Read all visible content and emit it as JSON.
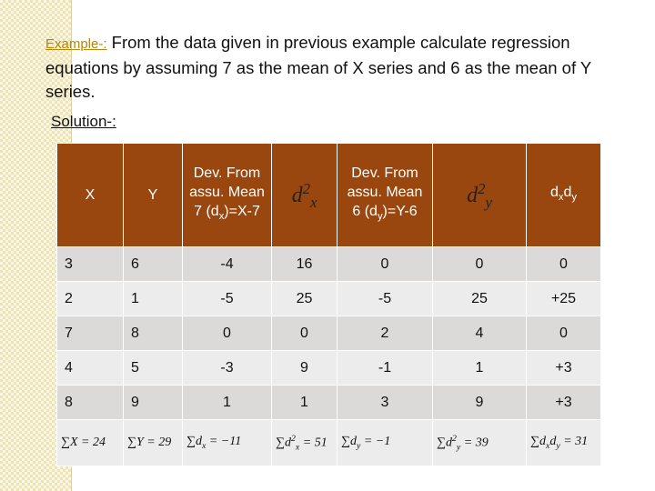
{
  "header": {
    "example_label": "Example-:",
    "text": "From the data given in previous example calculate  regression equations by assuming 7 as the mean of X series and 6 as the mean of Y series."
  },
  "solution_label": "Solution-:",
  "table": {
    "headers": [
      [
        {
          "text": "X"
        }
      ],
      [
        {
          "text": "Y"
        }
      ],
      [
        {
          "text": "Dev. From assu. Mean 7 (d"
        },
        {
          "text": "x",
          "pos": "sub"
        },
        {
          "text": ")=X-7"
        }
      ],
      [
        {
          "text": "d"
        },
        {
          "text": "2",
          "pos": "sup"
        },
        {
          "text": "x",
          "pos": "sub"
        }
      ],
      [
        {
          "text": "Dev. From assu. Mean 6 (d"
        },
        {
          "text": "y",
          "pos": "sub"
        },
        {
          "text": ")=Y-6"
        }
      ],
      [
        {
          "text": "d"
        },
        {
          "text": "2",
          "pos": "sup"
        },
        {
          "text": "y",
          "pos": "sub"
        }
      ],
      [
        {
          "text": "d"
        },
        {
          "text": "x",
          "pos": "sub"
        },
        {
          "text": "d"
        },
        {
          "text": "y",
          "pos": "sub"
        }
      ]
    ],
    "rows": [
      [
        3,
        6,
        -4,
        16,
        0,
        0,
        0
      ],
      [
        2,
        1,
        -5,
        25,
        -5,
        25,
        "+25"
      ],
      [
        7,
        8,
        0,
        0,
        2,
        4,
        0
      ],
      [
        4,
        5,
        -3,
        9,
        -1,
        1,
        "+3"
      ],
      [
        8,
        9,
        1,
        1,
        3,
        9,
        "+3"
      ]
    ],
    "totals": [
      [
        {
          "text": "∑X = 24"
        }
      ],
      [
        {
          "text": "∑Y = 29"
        }
      ],
      [
        {
          "text": "∑d"
        },
        {
          "text": "x",
          "pos": "sub"
        },
        {
          "text": " = −11"
        }
      ],
      [
        {
          "text": "∑d"
        },
        {
          "text": "2",
          "pos": "sup"
        },
        {
          "text": "x",
          "pos": "sub"
        },
        {
          "text": " = 51"
        }
      ],
      [
        {
          "text": "∑d"
        },
        {
          "text": "y",
          "pos": "sub"
        },
        {
          "text": " = −1"
        }
      ],
      [
        {
          "text": "∑d"
        },
        {
          "text": "2",
          "pos": "sup"
        },
        {
          "text": "y",
          "pos": "sub"
        },
        {
          "text": " = 39"
        }
      ],
      [
        {
          "text": "∑d"
        },
        {
          "text": "x",
          "pos": "sub"
        },
        {
          "text": "d"
        },
        {
          "text": "y",
          "pos": "sub"
        },
        {
          "text": " = 31"
        }
      ]
    ]
  }
}
